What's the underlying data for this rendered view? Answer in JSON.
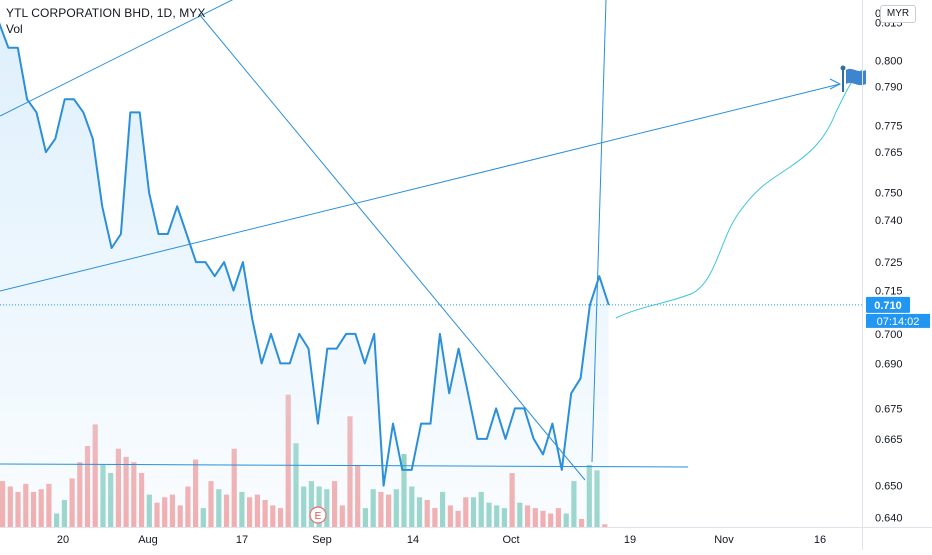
{
  "header": {
    "title": "YTL CORPORATION BHD, 1D, MYX",
    "volume_label": "Vol"
  },
  "currency": "MYR",
  "last_price_label": "0.710",
  "countdown_label": "07:14:02",
  "event_marker": "E",
  "colors": {
    "price_line": "#2b8fd9",
    "area_fill": "#dbeefc",
    "drawing": "#2b8fd9",
    "projection": "#3ec6d8",
    "volume_up": "#8fd1c3",
    "volume_down": "#f4a4a4",
    "price_tag": "#2196f3",
    "axis_text": "#131722"
  },
  "chart_data": {
    "type": "line",
    "title": "YTL CORPORATION BHD, 1D, MYX",
    "x_tick_labels": [
      "20",
      "Aug",
      "17",
      "Sep",
      "14",
      "Oct",
      "19",
      "Nov",
      "16"
    ],
    "y_tick_labels": [
      "0.815",
      "0.800",
      "0.790",
      "0.775",
      "0.765",
      "0.750",
      "0.740",
      "0.725",
      "0.715",
      "0.700",
      "0.690",
      "0.675",
      "0.665",
      "0.650",
      "0.640"
    ],
    "ylim": [
      0.637,
      0.824
    ],
    "scale": "log",
    "grid": false,
    "series": [
      {
        "values": [
          0.815,
          0.805,
          0.805,
          0.785,
          0.78,
          0.765,
          0.77,
          0.785,
          0.785,
          0.78,
          0.77,
          0.745,
          0.73,
          0.735,
          0.78,
          0.78,
          0.75,
          0.735,
          0.735,
          0.745,
          0.735,
          0.725,
          0.725,
          0.72,
          0.725,
          0.715,
          0.725,
          0.705,
          0.69,
          0.7,
          0.69,
          0.69,
          0.7,
          0.695,
          0.67,
          0.695,
          0.695,
          0.7,
          0.7,
          0.69,
          0.7,
          0.65,
          0.67,
          0.655,
          0.655,
          0.67,
          0.67,
          0.7,
          0.68,
          0.695,
          0.68,
          0.665,
          0.665,
          0.675,
          0.665,
          0.675,
          0.675,
          0.665,
          0.66,
          0.67,
          0.655,
          0.68,
          0.685,
          0.71,
          0.72,
          0.71
        ]
      }
    ],
    "volume": [
      {
        "value": 0.34,
        "up": false
      },
      {
        "value": 0.3,
        "up": false
      },
      {
        "value": 0.26,
        "up": false
      },
      {
        "value": 0.32,
        "up": false
      },
      {
        "value": 0.26,
        "up": false
      },
      {
        "value": 0.28,
        "up": false
      },
      {
        "value": 0.32,
        "up": false
      },
      {
        "value": 0.1,
        "up": true
      },
      {
        "value": 0.2,
        "up": true
      },
      {
        "value": 0.36,
        "up": false
      },
      {
        "value": 0.48,
        "up": false
      },
      {
        "value": 0.6,
        "up": false
      },
      {
        "value": 0.76,
        "up": false
      },
      {
        "value": 0.46,
        "up": true
      },
      {
        "value": 0.4,
        "up": true
      },
      {
        "value": 0.58,
        "up": false
      },
      {
        "value": 0.52,
        "up": false
      },
      {
        "value": 0.48,
        "up": false
      },
      {
        "value": 0.4,
        "up": false
      },
      {
        "value": 0.24,
        "up": true
      },
      {
        "value": 0.18,
        "up": false
      },
      {
        "value": 0.22,
        "up": false
      },
      {
        "value": 0.24,
        "up": false
      },
      {
        "value": 0.16,
        "up": false
      },
      {
        "value": 0.3,
        "up": false
      },
      {
        "value": 0.5,
        "up": false
      },
      {
        "value": 0.14,
        "up": true
      },
      {
        "value": 0.34,
        "up": false
      },
      {
        "value": 0.28,
        "up": true
      },
      {
        "value": 0.24,
        "up": false
      },
      {
        "value": 0.58,
        "up": false
      },
      {
        "value": 0.26,
        "up": true
      },
      {
        "value": 0.22,
        "up": false
      },
      {
        "value": 0.24,
        "up": false
      },
      {
        "value": 0.2,
        "up": false
      },
      {
        "value": 0.16,
        "up": false
      },
      {
        "value": 0.14,
        "up": false
      },
      {
        "value": 0.98,
        "up": false
      },
      {
        "value": 0.62,
        "up": true
      },
      {
        "value": 0.3,
        "up": true
      },
      {
        "value": 0.34,
        "up": true
      },
      {
        "value": 0.3,
        "up": true
      },
      {
        "value": 0.28,
        "up": true
      },
      {
        "value": 0.34,
        "up": false
      },
      {
        "value": 0.16,
        "up": false
      },
      {
        "value": 0.82,
        "up": false
      },
      {
        "value": 0.46,
        "up": false
      },
      {
        "value": 0.14,
        "up": true
      },
      {
        "value": 0.28,
        "up": true
      },
      {
        "value": 0.26,
        "up": false
      },
      {
        "value": 0.24,
        "up": false
      },
      {
        "value": 0.28,
        "up": true
      },
      {
        "value": 0.54,
        "up": true
      },
      {
        "value": 0.3,
        "up": true
      },
      {
        "value": 0.22,
        "up": true
      },
      {
        "value": 0.2,
        "up": false
      },
      {
        "value": 0.14,
        "up": false
      },
      {
        "value": 0.26,
        "up": true
      },
      {
        "value": 0.16,
        "up": false
      },
      {
        "value": 0.12,
        "up": false
      },
      {
        "value": 0.22,
        "up": false
      },
      {
        "value": 0.22,
        "up": true
      },
      {
        "value": 0.26,
        "up": true
      },
      {
        "value": 0.18,
        "up": true
      },
      {
        "value": 0.16,
        "up": true
      },
      {
        "value": 0.14,
        "up": true
      },
      {
        "value": 0.4,
        "up": false
      },
      {
        "value": 0.18,
        "up": true
      },
      {
        "value": 0.16,
        "up": false
      },
      {
        "value": 0.14,
        "up": false
      },
      {
        "value": 0.12,
        "up": false
      },
      {
        "value": 0.1,
        "up": false
      },
      {
        "value": 0.14,
        "up": false
      },
      {
        "value": 0.1,
        "up": true
      },
      {
        "value": 0.34,
        "up": true
      },
      {
        "value": 0.06,
        "up": false
      },
      {
        "value": 0.46,
        "up": true
      },
      {
        "value": 0.42,
        "up": true
      },
      {
        "value": 0.02,
        "up": false
      }
    ]
  }
}
